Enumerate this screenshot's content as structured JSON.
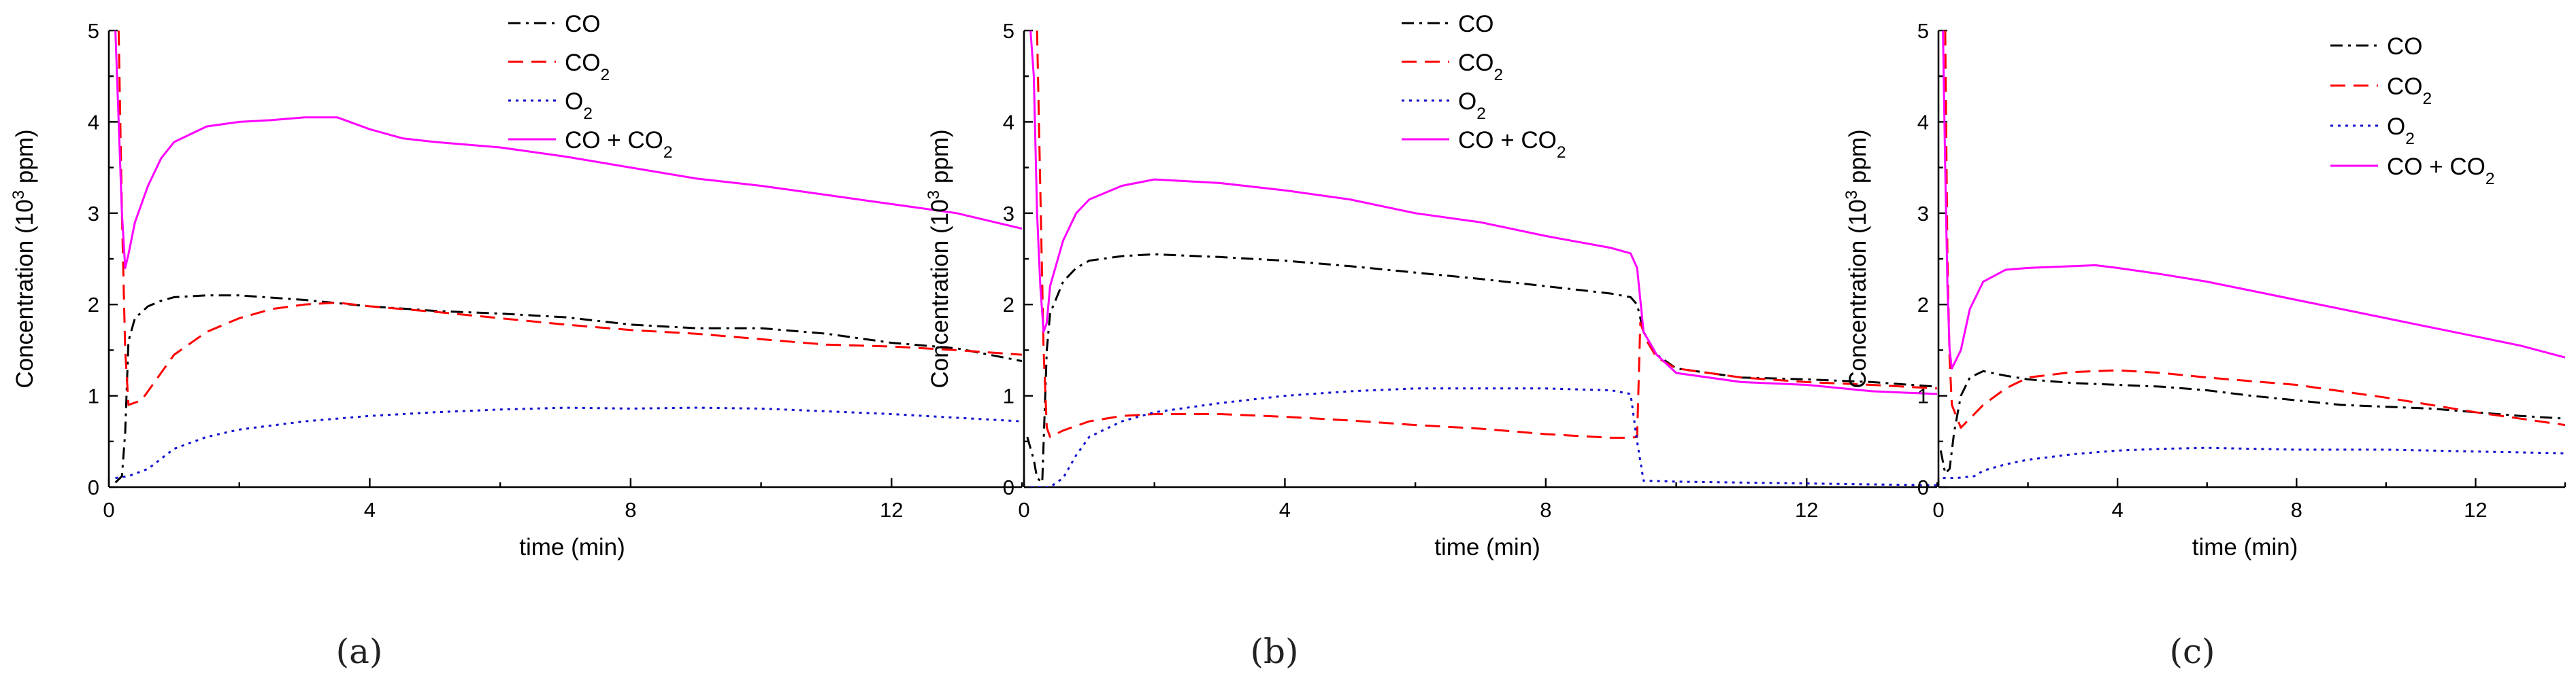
{
  "chart_data": [
    {
      "type": "line",
      "caption": "(a)",
      "xlabel": "time (min)",
      "ylabel_parts": [
        "Concentration (10",
        "3",
        " ppm)"
      ],
      "xlim": [
        0,
        14
      ],
      "ylim": [
        0,
        5
      ],
      "xticks": [
        0,
        4,
        8,
        12
      ],
      "yticks": [
        0,
        1,
        2,
        3,
        4,
        5
      ],
      "legend_position": "top-right",
      "series": [
        {
          "key": "co",
          "name": "CO",
          "label_parts": [
            "CO"
          ],
          "color": "#000000",
          "dash": "dashdot",
          "x": [
            0.1,
            0.2,
            0.25,
            0.3,
            0.4,
            0.6,
            0.8,
            1.0,
            1.5,
            2.0,
            3.0,
            4.0,
            5.0,
            6.0,
            7.0,
            8.0,
            9.0,
            10.0,
            11.0,
            12.0,
            13.0,
            14.0
          ],
          "y": [
            0.05,
            0.12,
            0.6,
            1.6,
            1.85,
            1.98,
            2.04,
            2.08,
            2.1,
            2.1,
            2.05,
            1.98,
            1.93,
            1.9,
            1.86,
            1.78,
            1.74,
            1.74,
            1.68,
            1.58,
            1.52,
            1.38
          ]
        },
        {
          "key": "co2",
          "name": "CO2",
          "label_parts": [
            "CO",
            "2"
          ],
          "color": "#ff0000",
          "dash": "dash",
          "x": [
            0.15,
            0.2,
            0.25,
            0.3,
            0.5,
            0.8,
            1.0,
            1.5,
            2.0,
            2.5,
            3.0,
            3.5,
            4.0,
            5.0,
            6.0,
            7.0,
            8.0,
            9.0,
            10.0,
            11.0,
            12.0,
            13.0,
            14.0
          ],
          "y": [
            5.0,
            3.0,
            1.5,
            0.9,
            0.95,
            1.25,
            1.45,
            1.7,
            1.85,
            1.95,
            2.0,
            2.02,
            1.98,
            1.92,
            1.85,
            1.78,
            1.72,
            1.68,
            1.62,
            1.56,
            1.54,
            1.5,
            1.45
          ]
        },
        {
          "key": "o2",
          "name": "O2",
          "label_parts": [
            "O",
            "2"
          ],
          "color": "#1010d0",
          "dash": "dot",
          "x": [
            0.1,
            0.3,
            0.6,
            1.0,
            1.5,
            2.0,
            3.0,
            4.0,
            5.0,
            6.0,
            7.0,
            8.0,
            9.0,
            10.0,
            11.0,
            12.0,
            13.0,
            14.0
          ],
          "y": [
            0.1,
            0.12,
            0.2,
            0.42,
            0.55,
            0.63,
            0.72,
            0.78,
            0.82,
            0.85,
            0.87,
            0.86,
            0.87,
            0.86,
            0.83,
            0.8,
            0.76,
            0.72
          ]
        },
        {
          "key": "sum",
          "name": "CO + CO2",
          "label_parts": [
            "CO + CO",
            "2"
          ],
          "color": "#ff00ff",
          "dash": "solid",
          "x": [
            0.1,
            0.15,
            0.2,
            0.25,
            0.3,
            0.4,
            0.6,
            0.8,
            1.0,
            1.5,
            2.0,
            2.5,
            3.0,
            3.5,
            4.0,
            4.5,
            5.0,
            6.0,
            7.0,
            8.0,
            9.0,
            10.0,
            11.0,
            12.0,
            13.0,
            14.0
          ],
          "y": [
            5.0,
            4.0,
            3.0,
            2.4,
            2.55,
            2.9,
            3.3,
            3.6,
            3.78,
            3.95,
            4.0,
            4.02,
            4.05,
            4.05,
            3.92,
            3.82,
            3.78,
            3.72,
            3.62,
            3.5,
            3.38,
            3.3,
            3.2,
            3.1,
            3.0,
            2.83
          ]
        }
      ]
    },
    {
      "type": "line",
      "caption": "(b)",
      "xlabel": "time (min)",
      "ylabel_parts": [
        "Concentration (10",
        "3",
        " ppm)"
      ],
      "xlim": [
        0,
        14
      ],
      "ylim": [
        0,
        5
      ],
      "xticks": [
        0,
        4,
        8,
        12
      ],
      "yticks": [
        0,
        1,
        2,
        3,
        4,
        5
      ],
      "legend_position": "top-right",
      "series": [
        {
          "key": "co",
          "name": "CO",
          "label_parts": [
            "CO"
          ],
          "color": "#000000",
          "dash": "dashdot",
          "x": [
            0.05,
            0.15,
            0.2,
            0.28,
            0.35,
            0.4,
            0.6,
            0.8,
            1.0,
            1.5,
            2.0,
            3.0,
            4.0,
            5.0,
            6.0,
            7.0,
            8.0,
            9.0,
            9.3,
            9.4,
            9.5,
            9.7,
            10.0,
            11.0,
            12.0,
            13.0,
            14.0
          ],
          "y": [
            0.55,
            0.3,
            0.1,
            0.05,
            1.5,
            1.9,
            2.25,
            2.4,
            2.48,
            2.53,
            2.55,
            2.52,
            2.48,
            2.42,
            2.35,
            2.28,
            2.2,
            2.12,
            2.08,
            2.0,
            1.7,
            1.45,
            1.3,
            1.2,
            1.18,
            1.15,
            1.1
          ]
        },
        {
          "key": "co2",
          "name": "CO2",
          "label_parts": [
            "CO",
            "2"
          ],
          "color": "#ff0000",
          "dash": "dash",
          "x": [
            0.2,
            0.3,
            0.35,
            0.4,
            0.6,
            1.0,
            1.5,
            2.0,
            3.0,
            4.0,
            5.0,
            6.0,
            7.0,
            8.0,
            9.0,
            9.3,
            9.4,
            9.45,
            9.55,
            9.7,
            10.0,
            11.0,
            12.0,
            13.0,
            14.0
          ],
          "y": [
            5.0,
            1.5,
            0.65,
            0.55,
            0.62,
            0.72,
            0.78,
            0.8,
            0.8,
            0.77,
            0.73,
            0.68,
            0.64,
            0.58,
            0.54,
            0.54,
            0.55,
            1.8,
            1.6,
            1.42,
            1.3,
            1.2,
            1.15,
            1.12,
            1.08
          ]
        },
        {
          "key": "o2",
          "name": "O2",
          "label_parts": [
            "O",
            "2"
          ],
          "color": "#1010d0",
          "dash": "dot",
          "x": [
            0.1,
            0.4,
            0.6,
            0.8,
            1.0,
            1.5,
            2.0,
            3.0,
            4.0,
            5.0,
            6.0,
            7.0,
            8.0,
            9.0,
            9.3,
            9.4,
            9.5,
            10.0,
            11.0,
            12.0,
            13.0,
            14.0
          ],
          "y": [
            0.0,
            0.0,
            0.1,
            0.35,
            0.55,
            0.72,
            0.82,
            0.92,
            1.0,
            1.05,
            1.08,
            1.08,
            1.08,
            1.06,
            1.02,
            0.5,
            0.07,
            0.06,
            0.05,
            0.04,
            0.03,
            0.02
          ]
        },
        {
          "key": "sum",
          "name": "CO + CO2",
          "label_parts": [
            "CO + CO",
            "2"
          ],
          "color": "#ff00ff",
          "dash": "solid",
          "x": [
            0.1,
            0.15,
            0.2,
            0.25,
            0.3,
            0.35,
            0.4,
            0.6,
            0.8,
            1.0,
            1.5,
            2.0,
            3.0,
            4.0,
            5.0,
            6.0,
            7.0,
            8.0,
            9.0,
            9.3,
            9.4,
            9.5,
            9.7,
            10.0,
            11.0,
            12.0,
            13.0,
            14.0
          ],
          "y": [
            5.0,
            4.5,
            3.0,
            2.2,
            1.7,
            1.8,
            2.2,
            2.7,
            3.0,
            3.15,
            3.3,
            3.37,
            3.33,
            3.25,
            3.15,
            3.0,
            2.9,
            2.75,
            2.62,
            2.56,
            2.4,
            1.7,
            1.45,
            1.25,
            1.15,
            1.12,
            1.05,
            1.02
          ]
        }
      ]
    },
    {
      "type": "line",
      "caption": "(c)",
      "xlabel": "time (min)",
      "ylabel_parts": [
        "Concentration (10",
        "3",
        " ppm)"
      ],
      "xlim": [
        0,
        14
      ],
      "ylim": [
        0,
        5
      ],
      "xticks": [
        0,
        4,
        8,
        12
      ],
      "yticks": [
        0,
        1,
        2,
        3,
        4,
        5
      ],
      "legend_position": "top-right",
      "series": [
        {
          "key": "co",
          "name": "CO",
          "label_parts": [
            "CO"
          ],
          "color": "#000000",
          "dash": "dashdot",
          "x": [
            0.05,
            0.15,
            0.25,
            0.35,
            0.5,
            0.7,
            1.0,
            1.5,
            2.0,
            3.0,
            4.0,
            5.0,
            6.0,
            7.0,
            8.0,
            9.0,
            10.0,
            11.0,
            12.0,
            13.0,
            14.0
          ],
          "y": [
            0.4,
            0.15,
            0.2,
            0.6,
            1.0,
            1.2,
            1.27,
            1.22,
            1.18,
            1.14,
            1.12,
            1.1,
            1.06,
            1.0,
            0.95,
            0.9,
            0.88,
            0.86,
            0.82,
            0.78,
            0.75
          ]
        },
        {
          "key": "co2",
          "name": "CO2",
          "label_parts": [
            "CO",
            "2"
          ],
          "color": "#ff0000",
          "dash": "dash",
          "x": [
            0.15,
            0.2,
            0.25,
            0.3,
            0.5,
            0.8,
            1.0,
            1.5,
            2.0,
            3.0,
            4.0,
            5.0,
            6.0,
            7.0,
            8.0,
            9.0,
            10.0,
            11.0,
            12.0,
            13.0,
            14.0
          ],
          "y": [
            5.0,
            2.5,
            1.4,
            0.9,
            0.65,
            0.8,
            0.9,
            1.08,
            1.2,
            1.26,
            1.28,
            1.25,
            1.2,
            1.16,
            1.12,
            1.05,
            0.98,
            0.9,
            0.82,
            0.75,
            0.68
          ]
        },
        {
          "key": "o2",
          "name": "O2",
          "label_parts": [
            "O",
            "2"
          ],
          "color": "#1010d0",
          "dash": "dot",
          "x": [
            0.1,
            0.4,
            0.8,
            1.0,
            1.5,
            2.0,
            3.0,
            4.0,
            5.0,
            6.0,
            7.0,
            8.0,
            9.0,
            10.0,
            11.0,
            12.0,
            13.0,
            14.0
          ],
          "y": [
            0.1,
            0.1,
            0.12,
            0.18,
            0.25,
            0.3,
            0.36,
            0.4,
            0.42,
            0.43,
            0.42,
            0.41,
            0.41,
            0.41,
            0.4,
            0.39,
            0.38,
            0.37
          ]
        },
        {
          "key": "sum",
          "name": "CO + CO2",
          "label_parts": [
            "CO + CO",
            "2"
          ],
          "color": "#ff00ff",
          "dash": "solid",
          "x": [
            0.1,
            0.15,
            0.2,
            0.25,
            0.3,
            0.4,
            0.5,
            0.7,
            1.0,
            1.5,
            2.0,
            3.0,
            3.5,
            4.0,
            5.0,
            6.0,
            7.0,
            8.0,
            9.0,
            10.0,
            11.0,
            12.0,
            13.0,
            14.0
          ],
          "y": [
            5.0,
            3.5,
            2.2,
            1.5,
            1.3,
            1.4,
            1.5,
            1.95,
            2.25,
            2.38,
            2.4,
            2.42,
            2.43,
            2.4,
            2.33,
            2.25,
            2.15,
            2.05,
            1.95,
            1.85,
            1.75,
            1.65,
            1.55,
            1.42
          ]
        }
      ]
    }
  ]
}
